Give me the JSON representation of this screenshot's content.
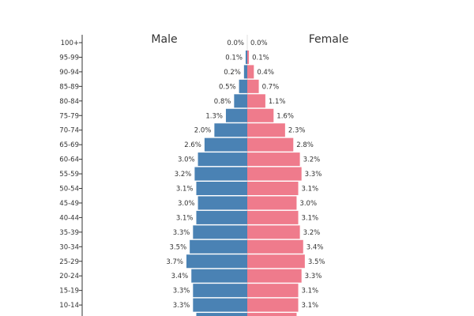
{
  "chart_data": {
    "type": "bar",
    "orientation": "horizontal-butterfly",
    "title": "",
    "series": [
      {
        "name": "Male",
        "color": "#4a82b4",
        "values": [
          0.0,
          0.1,
          0.2,
          0.5,
          0.8,
          1.3,
          2.0,
          2.6,
          3.0,
          3.2,
          3.1,
          3.0,
          3.1,
          3.3,
          3.5,
          3.7,
          3.4,
          3.3,
          3.3,
          3.1
        ],
        "labels": [
          "0.0%",
          "0.1%",
          "0.2%",
          "0.5%",
          "0.8%",
          "1.3%",
          "2.0%",
          "2.6%",
          "3.0%",
          "3.2%",
          "3.1%",
          "3.0%",
          "3.1%",
          "3.3%",
          "3.5%",
          "3.7%",
          "3.4%",
          "3.3%",
          "3.3%",
          ""
        ]
      },
      {
        "name": "Female",
        "color": "#ef7b8c",
        "values": [
          0.0,
          0.1,
          0.4,
          0.7,
          1.1,
          1.6,
          2.3,
          2.8,
          3.2,
          3.3,
          3.1,
          3.0,
          3.1,
          3.2,
          3.4,
          3.5,
          3.3,
          3.1,
          3.1,
          3.0
        ],
        "labels": [
          "0.0%",
          "0.1%",
          "0.4%",
          "0.7%",
          "1.1%",
          "1.6%",
          "2.3%",
          "2.8%",
          "3.2%",
          "3.3%",
          "3.1%",
          "3.0%",
          "3.1%",
          "3.2%",
          "3.4%",
          "3.5%",
          "3.3%",
          "3.1%",
          "3.1%",
          ""
        ]
      }
    ],
    "categories": [
      "100+",
      "95-99",
      "90-94",
      "85-89",
      "80-84",
      "75-79",
      "70-74",
      "65-69",
      "60-64",
      "55-59",
      "50-54",
      "45-49",
      "40-44",
      "35-39",
      "30-34",
      "25-29",
      "20-24",
      "15-19",
      "10-14",
      ""
    ],
    "xlim": [
      -3.7,
      3.7
    ],
    "unit": "%"
  }
}
